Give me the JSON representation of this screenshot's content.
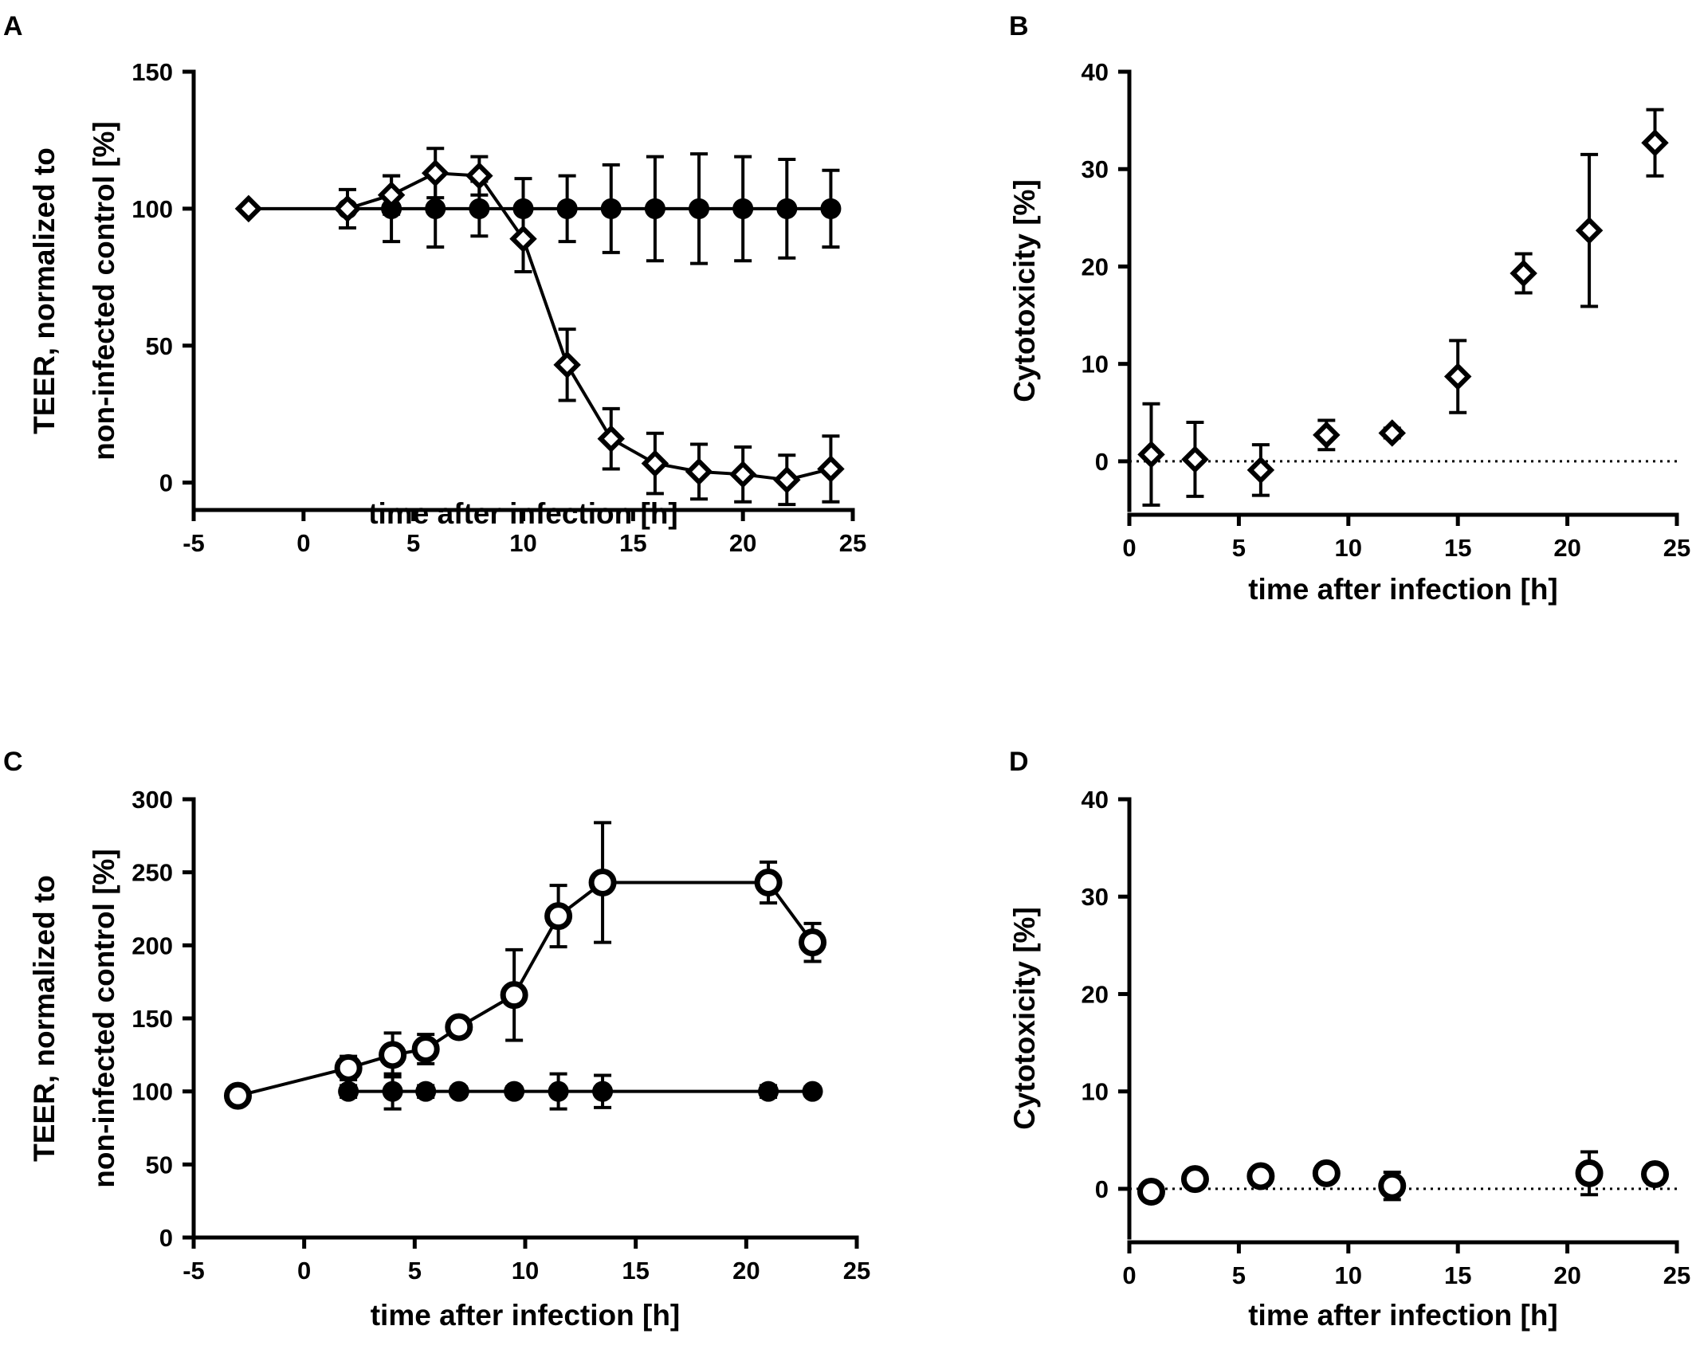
{
  "figure": {
    "panels": [
      {
        "id": "A",
        "label": "A"
      },
      {
        "id": "B",
        "label": "B"
      },
      {
        "id": "C",
        "label": "C"
      },
      {
        "id": "D",
        "label": "D"
      }
    ]
  },
  "chart_data": [
    {
      "panel": "A",
      "type": "line",
      "xlabel": "time after infection [h]",
      "ylabel_lines": [
        "TEER, normalized to",
        "non-infected control [%]"
      ],
      "xlim": [
        -5,
        25
      ],
      "ylim": [
        -10,
        150
      ],
      "xticks": [
        -5,
        0,
        5,
        10,
        15,
        20,
        25
      ],
      "yticks": [
        0,
        50,
        100,
        150
      ],
      "grid": false,
      "legend": "none",
      "series": [
        {
          "marker": "filled-circle",
          "connected": true,
          "points": [
            {
              "x": 2,
              "y": 100,
              "err": 0
            },
            {
              "x": 4,
              "y": 100,
              "err": 12
            },
            {
              "x": 6,
              "y": 100,
              "err": 14
            },
            {
              "x": 8,
              "y": 100,
              "err": 10
            },
            {
              "x": 10,
              "y": 100,
              "err": 11
            },
            {
              "x": 12,
              "y": 100,
              "err": 12
            },
            {
              "x": 14,
              "y": 100,
              "err": 16
            },
            {
              "x": 16,
              "y": 100,
              "err": 19
            },
            {
              "x": 18,
              "y": 100,
              "err": 20
            },
            {
              "x": 20,
              "y": 100,
              "err": 19
            },
            {
              "x": 22,
              "y": 100,
              "err": 18
            },
            {
              "x": 24,
              "y": 100,
              "err": 14
            }
          ]
        },
        {
          "marker": "open-diamond",
          "connected": true,
          "points": [
            {
              "x": -2.5,
              "y": 100,
              "err": 0
            },
            {
              "x": 2,
              "y": 100,
              "err": 7
            },
            {
              "x": 4,
              "y": 105,
              "err": 7
            },
            {
              "x": 6,
              "y": 113,
              "err": 9
            },
            {
              "x": 8,
              "y": 112,
              "err": 7
            },
            {
              "x": 10,
              "y": 89,
              "err": 12
            },
            {
              "x": 12,
              "y": 43,
              "err": 13
            },
            {
              "x": 14,
              "y": 16,
              "err": 11
            },
            {
              "x": 16,
              "y": 7,
              "err": 11
            },
            {
              "x": 18,
              "y": 4,
              "err": 10
            },
            {
              "x": 20,
              "y": 3,
              "err": 10
            },
            {
              "x": 22,
              "y": 1,
              "err": 9
            },
            {
              "x": 24,
              "y": 5,
              "err": 12
            }
          ]
        }
      ]
    },
    {
      "panel": "B",
      "type": "scatter",
      "xlabel": "time after infection [h]",
      "ylabel_lines": [
        "Cytotoxicity [%]"
      ],
      "xlim": [
        0,
        25
      ],
      "ylim": [
        -5,
        40
      ],
      "xticks": [
        0,
        5,
        10,
        15,
        20,
        25
      ],
      "yticks": [
        0,
        10,
        20,
        30,
        40
      ],
      "zero_line": "dotted",
      "grid": false,
      "legend": "none",
      "series": [
        {
          "marker": "open-diamond",
          "connected": false,
          "points": [
            {
              "x": 1,
              "y": 0.7,
              "err": 5.2
            },
            {
              "x": 3,
              "y": 0.2,
              "err": 3.8
            },
            {
              "x": 6,
              "y": -0.9,
              "err": 2.6
            },
            {
              "x": 9,
              "y": 2.7,
              "err": 1.5
            },
            {
              "x": 12,
              "y": 2.9,
              "err": 0.5
            },
            {
              "x": 15,
              "y": 8.7,
              "err": 3.7
            },
            {
              "x": 18,
              "y": 19.3,
              "err": 2.0
            },
            {
              "x": 21,
              "y": 23.7,
              "err": 7.8
            },
            {
              "x": 24,
              "y": 32.7,
              "err": 3.4
            }
          ]
        }
      ]
    },
    {
      "panel": "C",
      "type": "line",
      "xlabel": "time after infection [h]",
      "ylabel_lines": [
        "TEER, normalized to",
        "non-infected control [%]"
      ],
      "xlim": [
        -5,
        25
      ],
      "ylim": [
        0,
        300
      ],
      "xticks": [
        -5,
        0,
        5,
        10,
        15,
        20,
        25
      ],
      "yticks": [
        0,
        50,
        100,
        150,
        200,
        250,
        300
      ],
      "grid": false,
      "legend": "none",
      "series": [
        {
          "marker": "filled-circle",
          "connected": true,
          "points": [
            {
              "x": 2,
              "y": 100,
              "err": 4
            },
            {
              "x": 4,
              "y": 100,
              "err": 12
            },
            {
              "x": 5.5,
              "y": 100,
              "err": 4
            },
            {
              "x": 7,
              "y": 100,
              "err": 3
            },
            {
              "x": 9.5,
              "y": 100,
              "err": 3
            },
            {
              "x": 11.5,
              "y": 100,
              "err": 12
            },
            {
              "x": 13.5,
              "y": 100,
              "err": 11
            },
            {
              "x": 21,
              "y": 100,
              "err": 4
            },
            {
              "x": 23,
              "y": 100,
              "err": 3
            }
          ]
        },
        {
          "marker": "open-circle",
          "connected": true,
          "points": [
            {
              "x": -3,
              "y": 97,
              "err": 0
            },
            {
              "x": 2,
              "y": 116,
              "err": 8
            },
            {
              "x": 4,
              "y": 125,
              "err": 15
            },
            {
              "x": 5.5,
              "y": 129,
              "err": 10
            },
            {
              "x": 7,
              "y": 144,
              "err": 6
            },
            {
              "x": 9.5,
              "y": 166,
              "err": 31
            },
            {
              "x": 11.5,
              "y": 220,
              "err": 21
            },
            {
              "x": 13.5,
              "y": 243,
              "err": 41
            },
            {
              "x": 21,
              "y": 243,
              "err": 14
            },
            {
              "x": 23,
              "y": 202,
              "err": 13
            }
          ]
        }
      ]
    },
    {
      "panel": "D",
      "type": "scatter",
      "xlabel": "time after infection [h]",
      "ylabel_lines": [
        "Cytotoxicity [%]"
      ],
      "xlim": [
        0,
        25
      ],
      "ylim": [
        -5,
        40
      ],
      "xticks": [
        0,
        5,
        10,
        15,
        20,
        25
      ],
      "yticks": [
        0,
        10,
        20,
        30,
        40
      ],
      "zero_line": "dotted",
      "grid": false,
      "legend": "none",
      "series": [
        {
          "marker": "open-circle",
          "connected": false,
          "points": [
            {
              "x": 1,
              "y": -0.3,
              "err": 0.4
            },
            {
              "x": 3,
              "y": 1.0,
              "err": 0.6
            },
            {
              "x": 6,
              "y": 1.3,
              "err": 0.6
            },
            {
              "x": 9,
              "y": 1.6,
              "err": 0.6
            },
            {
              "x": 12,
              "y": 0.3,
              "err": 1.4
            },
            {
              "x": 21,
              "y": 1.6,
              "err": 2.2
            },
            {
              "x": 24,
              "y": 1.5,
              "err": 1.0
            }
          ]
        }
      ]
    }
  ]
}
